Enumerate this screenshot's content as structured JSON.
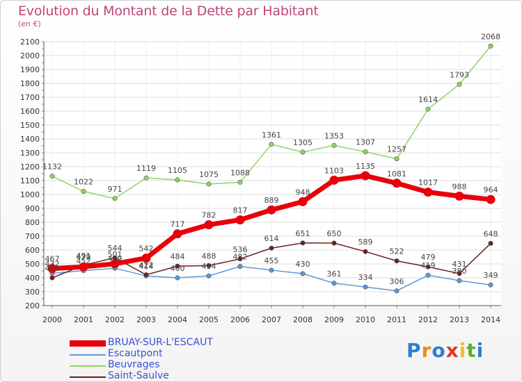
{
  "title": "Evolution du Montant de la Dette par Habitant",
  "subtitle": "(en €)",
  "logo": {
    "text": "Proxiti",
    "letters": [
      {
        "ch": "P",
        "color": "#2b7fd1"
      },
      {
        "ch": "r",
        "color": "#f08a1c"
      },
      {
        "ch": "o",
        "color": "#2b7fd1"
      },
      {
        "ch": "x",
        "color": "#e0392a"
      },
      {
        "ch": "i",
        "color": "#f0c020"
      },
      {
        "ch": "t",
        "color": "#5ab030"
      },
      {
        "ch": "i",
        "color": "#2b7fd1"
      }
    ]
  },
  "chart_data": {
    "type": "line",
    "x": [
      2000,
      2001,
      2002,
      2003,
      2004,
      2005,
      2006,
      2007,
      2008,
      2009,
      2010,
      2011,
      2012,
      2013,
      2014
    ],
    "ylim": [
      200,
      2100
    ],
    "yticks": [
      200,
      300,
      400,
      500,
      600,
      700,
      800,
      900,
      1000,
      1100,
      1200,
      1300,
      1400,
      1500,
      1600,
      1700,
      1800,
      1900,
      2000,
      2100
    ],
    "grid": true,
    "legend": "bottom-left",
    "series": [
      {
        "name": "BRUAY-SUR-L'ESCAUT",
        "color": "#e8000b",
        "width": 7,
        "values": [
          467,
          479,
          501,
          542,
          717,
          782,
          817,
          889,
          948,
          1103,
          1135,
          1081,
          1017,
          988,
          964
        ]
      },
      {
        "name": "Escautpont",
        "color": "#5a9ad6",
        "width": 1.5,
        "values": [
          432,
          452,
          469,
          414,
          400,
          414,
          482,
          455,
          430,
          361,
          334,
          306,
          419,
          380,
          349
        ]
      },
      {
        "name": "Beuvrages",
        "color": "#8fd462",
        "width": 1.5,
        "values": [
          1132,
          1022,
          971,
          1119,
          1105,
          1075,
          1088,
          1361,
          1305,
          1353,
          1307,
          1257,
          1614,
          1793,
          2068
        ]
      },
      {
        "name": "Saint-Saulve",
        "color": "#6b1e1e",
        "width": 1.5,
        "values": [
          400,
          491,
          544,
          422,
          484,
          488,
          536,
          614,
          651,
          650,
          589,
          522,
          479,
          431,
          648
        ]
      }
    ]
  }
}
